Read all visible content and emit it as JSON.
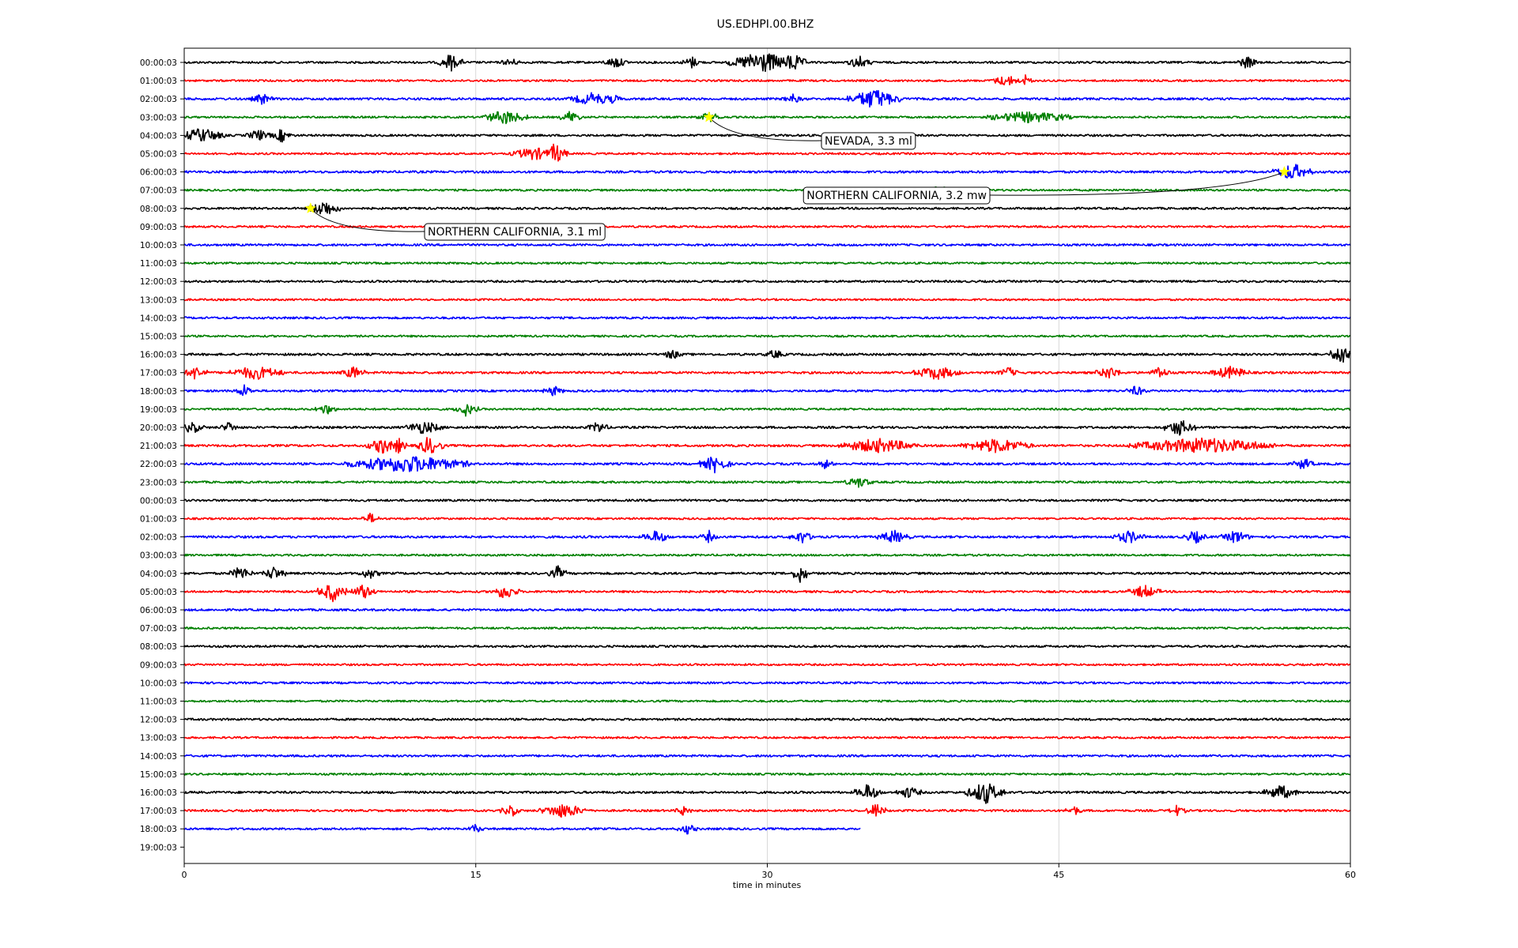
{
  "chart_data": {
    "type": "line",
    "title": "US.EDHPI.00.BHZ",
    "xlabel": "time in minutes",
    "ylabel": "",
    "xlim": [
      0,
      60
    ],
    "xticks": [
      0,
      15,
      30,
      45,
      60
    ],
    "grid": "vertical",
    "trace_colors": [
      "#000000",
      "#ff0000",
      "#0000ff",
      "#008000"
    ],
    "row_labels": [
      "00:00:03",
      "01:00:03",
      "02:00:03",
      "03:00:03",
      "04:00:03",
      "05:00:03",
      "06:00:03",
      "07:00:03",
      "08:00:03",
      "09:00:03",
      "10:00:03",
      "11:00:03",
      "12:00:03",
      "13:00:03",
      "14:00:03",
      "15:00:03",
      "16:00:03",
      "17:00:03",
      "18:00:03",
      "19:00:03",
      "20:00:03",
      "21:00:03",
      "22:00:03",
      "23:00:03",
      "00:00:03",
      "01:00:03",
      "02:00:03",
      "03:00:03",
      "04:00:03",
      "05:00:03",
      "06:00:03",
      "07:00:03",
      "08:00:03",
      "09:00:03",
      "10:00:03",
      "11:00:03",
      "12:00:03",
      "13:00:03",
      "14:00:03",
      "15:00:03",
      "16:00:03",
      "17:00:03",
      "18:00:03",
      "19:00:03"
    ],
    "traces": [
      {
        "row": 0,
        "end": 60,
        "noise": 1.3,
        "bursts": [
          [
            13.7,
            2.2,
            0.4
          ],
          [
            16.8,
            1.2,
            0.2
          ],
          [
            22.2,
            1.2,
            0.4
          ],
          [
            26.1,
            1.3,
            0.3
          ],
          [
            29.7,
            2.8,
            1.5
          ],
          [
            31.3,
            2.6,
            0.5
          ],
          [
            34.7,
            1.5,
            0.4
          ],
          [
            54.7,
            1.3,
            0.4
          ]
        ]
      },
      {
        "row": 1,
        "end": 60,
        "noise": 1.2,
        "bursts": [
          [
            42.3,
            1.0,
            0.6
          ],
          [
            43.3,
            1.6,
            0.1
          ]
        ]
      },
      {
        "row": 2,
        "end": 60,
        "noise": 1.4,
        "bursts": [
          [
            4.0,
            1.3,
            0.3
          ],
          [
            21.0,
            1.2,
            1.0
          ],
          [
            22.1,
            1.0,
            0.2
          ],
          [
            31.3,
            0.9,
            0.3
          ],
          [
            35.5,
            2.5,
            1.2
          ]
        ]
      },
      {
        "row": 3,
        "end": 60,
        "noise": 1.2,
        "bursts": [
          [
            16.5,
            1.5,
            1.0
          ],
          [
            19.9,
            1.7,
            0.3
          ],
          [
            27.0,
            0.8,
            0.5
          ],
          [
            43.5,
            1.0,
            2.0
          ]
        ]
      },
      {
        "row": 4,
        "end": 60,
        "noise": 1.3,
        "bursts": [
          [
            0.9,
            1.6,
            1.0
          ],
          [
            3.8,
            1.3,
            0.4
          ],
          [
            5.0,
            1.5,
            0.3
          ]
        ]
      },
      {
        "row": 5,
        "end": 60,
        "noise": 1.2,
        "bursts": [
          [
            18.0,
            1.3,
            1.0
          ],
          [
            19.1,
            3.0,
            0.4
          ]
        ]
      },
      {
        "row": 6,
        "end": 60,
        "noise": 1.4,
        "bursts": [
          [
            57.0,
            2.0,
            0.8
          ]
        ]
      },
      {
        "row": 7,
        "end": 60,
        "noise": 1.2,
        "bursts": [
          [
            39.0,
            0.8,
            0.5
          ]
        ]
      },
      {
        "row": 8,
        "end": 60,
        "noise": 1.3,
        "bursts": [
          [
            7.2,
            2.0,
            0.6
          ]
        ]
      },
      {
        "row": 9,
        "end": 60,
        "noise": 1.2,
        "bursts": []
      },
      {
        "row": 10,
        "end": 60,
        "noise": 1.3,
        "bursts": []
      },
      {
        "row": 11,
        "end": 60,
        "noise": 1.2,
        "bursts": []
      },
      {
        "row": 12,
        "end": 60,
        "noise": 1.3,
        "bursts": []
      },
      {
        "row": 13,
        "end": 60,
        "noise": 1.2,
        "bursts": []
      },
      {
        "row": 14,
        "end": 60,
        "noise": 1.3,
        "bursts": []
      },
      {
        "row": 15,
        "end": 60,
        "noise": 1.2,
        "bursts": []
      },
      {
        "row": 16,
        "end": 60,
        "noise": 1.4,
        "bursts": [
          [
            25.1,
            0.9,
            0.3
          ],
          [
            30.4,
            0.8,
            0.3
          ],
          [
            59.6,
            3.5,
            0.4
          ]
        ]
      },
      {
        "row": 17,
        "end": 60,
        "noise": 1.4,
        "bursts": [
          [
            0.6,
            1.6,
            0.4
          ],
          [
            3.7,
            1.4,
            1.2
          ],
          [
            8.7,
            1.3,
            0.4
          ],
          [
            38.7,
            1.4,
            1.0
          ],
          [
            42.4,
            1.1,
            0.3
          ],
          [
            47.6,
            1.3,
            0.5
          ],
          [
            50.2,
            1.5,
            0.3
          ],
          [
            53.8,
            1.2,
            0.8
          ]
        ]
      },
      {
        "row": 18,
        "end": 60,
        "noise": 1.3,
        "bursts": [
          [
            3.1,
            1.4,
            0.3
          ],
          [
            19.0,
            1.0,
            0.3
          ],
          [
            49.0,
            1.0,
            0.3
          ]
        ]
      },
      {
        "row": 19,
        "end": 60,
        "noise": 1.2,
        "bursts": [
          [
            7.3,
            1.2,
            0.3
          ],
          [
            14.5,
            1.5,
            0.4
          ]
        ]
      },
      {
        "row": 20,
        "end": 60,
        "noise": 1.4,
        "bursts": [
          [
            0.4,
            1.3,
            0.4
          ],
          [
            2.3,
            1.5,
            0.2
          ],
          [
            12.3,
            1.3,
            0.8
          ],
          [
            21.3,
            1.3,
            0.3
          ],
          [
            51.2,
            2.0,
            0.6
          ]
        ]
      },
      {
        "row": 21,
        "end": 60,
        "noise": 1.4,
        "bursts": [
          [
            10.2,
            1.9,
            0.6
          ],
          [
            11.0,
            2.4,
            0.2
          ],
          [
            12.6,
            2.3,
            0.5
          ],
          [
            35.7,
            1.5,
            1.8
          ],
          [
            41.8,
            1.5,
            1.6
          ],
          [
            52.4,
            1.7,
            3.6
          ]
        ]
      },
      {
        "row": 22,
        "end": 60,
        "noise": 1.4,
        "bursts": [
          [
            11.5,
            2.0,
            3.0
          ],
          [
            27.3,
            2.0,
            0.6
          ],
          [
            33.0,
            1.0,
            0.2
          ],
          [
            57.6,
            1.4,
            0.3
          ]
        ]
      },
      {
        "row": 23,
        "end": 60,
        "noise": 1.3,
        "bursts": [
          [
            34.7,
            1.0,
            0.5
          ]
        ]
      },
      {
        "row": 24,
        "end": 60,
        "noise": 1.3,
        "bursts": []
      },
      {
        "row": 25,
        "end": 60,
        "noise": 1.2,
        "bursts": [
          [
            9.6,
            1.2,
            0.2
          ]
        ]
      },
      {
        "row": 26,
        "end": 60,
        "noise": 1.4,
        "bursts": [
          [
            24.3,
            1.3,
            0.5
          ],
          [
            27.0,
            1.3,
            0.2
          ],
          [
            31.8,
            1.4,
            0.4
          ],
          [
            36.5,
            1.4,
            0.6
          ],
          [
            48.6,
            1.3,
            0.6
          ],
          [
            52.0,
            1.4,
            0.4
          ],
          [
            54.1,
            1.4,
            0.5
          ]
        ]
      },
      {
        "row": 27,
        "end": 60,
        "noise": 1.2,
        "bursts": []
      },
      {
        "row": 28,
        "end": 60,
        "noise": 1.4,
        "bursts": [
          [
            2.9,
            1.6,
            0.4
          ],
          [
            4.6,
            1.5,
            0.4
          ],
          [
            9.5,
            1.3,
            0.3
          ],
          [
            19.2,
            2.0,
            0.2
          ],
          [
            31.7,
            4.0,
            0.1
          ]
        ]
      },
      {
        "row": 29,
        "end": 60,
        "noise": 1.3,
        "bursts": [
          [
            7.6,
            2.6,
            0.5
          ],
          [
            9.2,
            2.0,
            0.4
          ],
          [
            16.5,
            1.8,
            0.5
          ],
          [
            49.4,
            1.4,
            0.6
          ]
        ]
      },
      {
        "row": 30,
        "end": 60,
        "noise": 1.3,
        "bursts": []
      },
      {
        "row": 31,
        "end": 60,
        "noise": 1.2,
        "bursts": []
      },
      {
        "row": 32,
        "end": 60,
        "noise": 1.3,
        "bursts": []
      },
      {
        "row": 33,
        "end": 60,
        "noise": 1.2,
        "bursts": []
      },
      {
        "row": 34,
        "end": 60,
        "noise": 1.3,
        "bursts": []
      },
      {
        "row": 35,
        "end": 60,
        "noise": 1.2,
        "bursts": []
      },
      {
        "row": 36,
        "end": 60,
        "noise": 1.3,
        "bursts": []
      },
      {
        "row": 37,
        "end": 60,
        "noise": 1.2,
        "bursts": []
      },
      {
        "row": 38,
        "end": 60,
        "noise": 1.3,
        "bursts": []
      },
      {
        "row": 39,
        "end": 60,
        "noise": 1.2,
        "bursts": []
      },
      {
        "row": 40,
        "end": 60,
        "noise": 1.4,
        "bursts": [
          [
            35.2,
            2.0,
            0.5
          ],
          [
            37.3,
            1.3,
            0.4
          ],
          [
            41.2,
            3.0,
            0.8
          ],
          [
            56.4,
            1.6,
            0.7
          ]
        ]
      },
      {
        "row": 41,
        "end": 60,
        "noise": 1.3,
        "bursts": [
          [
            16.8,
            1.5,
            0.3
          ],
          [
            19.5,
            1.6,
            1.0
          ],
          [
            25.7,
            1.2,
            0.2
          ],
          [
            35.6,
            2.0,
            0.3
          ],
          [
            45.8,
            1.0,
            0.2
          ],
          [
            51.1,
            1.2,
            0.2
          ]
        ]
      },
      {
        "row": 42,
        "end": 34.8,
        "noise": 1.3,
        "bursts": [
          [
            15.0,
            1.0,
            0.2
          ],
          [
            25.9,
            1.0,
            0.3
          ]
        ]
      }
    ],
    "events": [
      {
        "row": 3,
        "x": 27.0,
        "label": "NEVADA, 3.3 ml"
      },
      {
        "row": 6,
        "x": 56.6,
        "label": "NORTHERN CALIFORNIA, 3.2 mw"
      },
      {
        "row": 8,
        "x": 6.5,
        "label": "NORTHERN CALIFORNIA, 3.1 ml"
      }
    ]
  }
}
